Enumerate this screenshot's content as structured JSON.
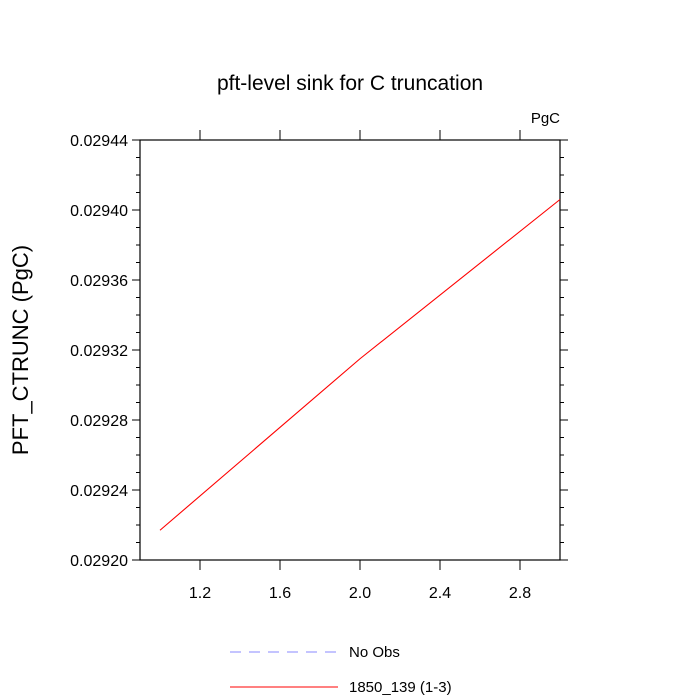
{
  "chart_data": {
    "type": "line",
    "title": "pft-level sink for C truncation",
    "units_label": "PgC",
    "xlabel": "",
    "ylabel": "PFT_CTRUNC  (PgC)",
    "xlim": [
      0.9,
      3.0
    ],
    "ylim": [
      0.0292,
      0.02944
    ],
    "x_ticks": [
      1.2,
      1.6,
      2.0,
      2.4,
      2.8
    ],
    "x_tick_labels": [
      "1.2",
      "1.6",
      "2.0",
      "2.4",
      "2.8"
    ],
    "y_ticks": [
      0.0292,
      0.02924,
      0.02928,
      0.02932,
      0.02936,
      0.0294,
      0.02944
    ],
    "y_tick_labels": [
      "0.02920",
      "0.02924",
      "0.02928",
      "0.02932",
      "0.02936",
      "0.02940",
      "0.02944"
    ],
    "grid": false,
    "legend_position": "bottom",
    "series": [
      {
        "name": "No Obs",
        "color": "#8a8aff",
        "dash": "dashed",
        "x": [],
        "y": []
      },
      {
        "name": "1850_139 (1-3)",
        "color": "#ff0000",
        "dash": "solid",
        "x": [
          1,
          2,
          3
        ],
        "y": [
          0.029217,
          0.029315,
          0.029406
        ]
      }
    ]
  }
}
